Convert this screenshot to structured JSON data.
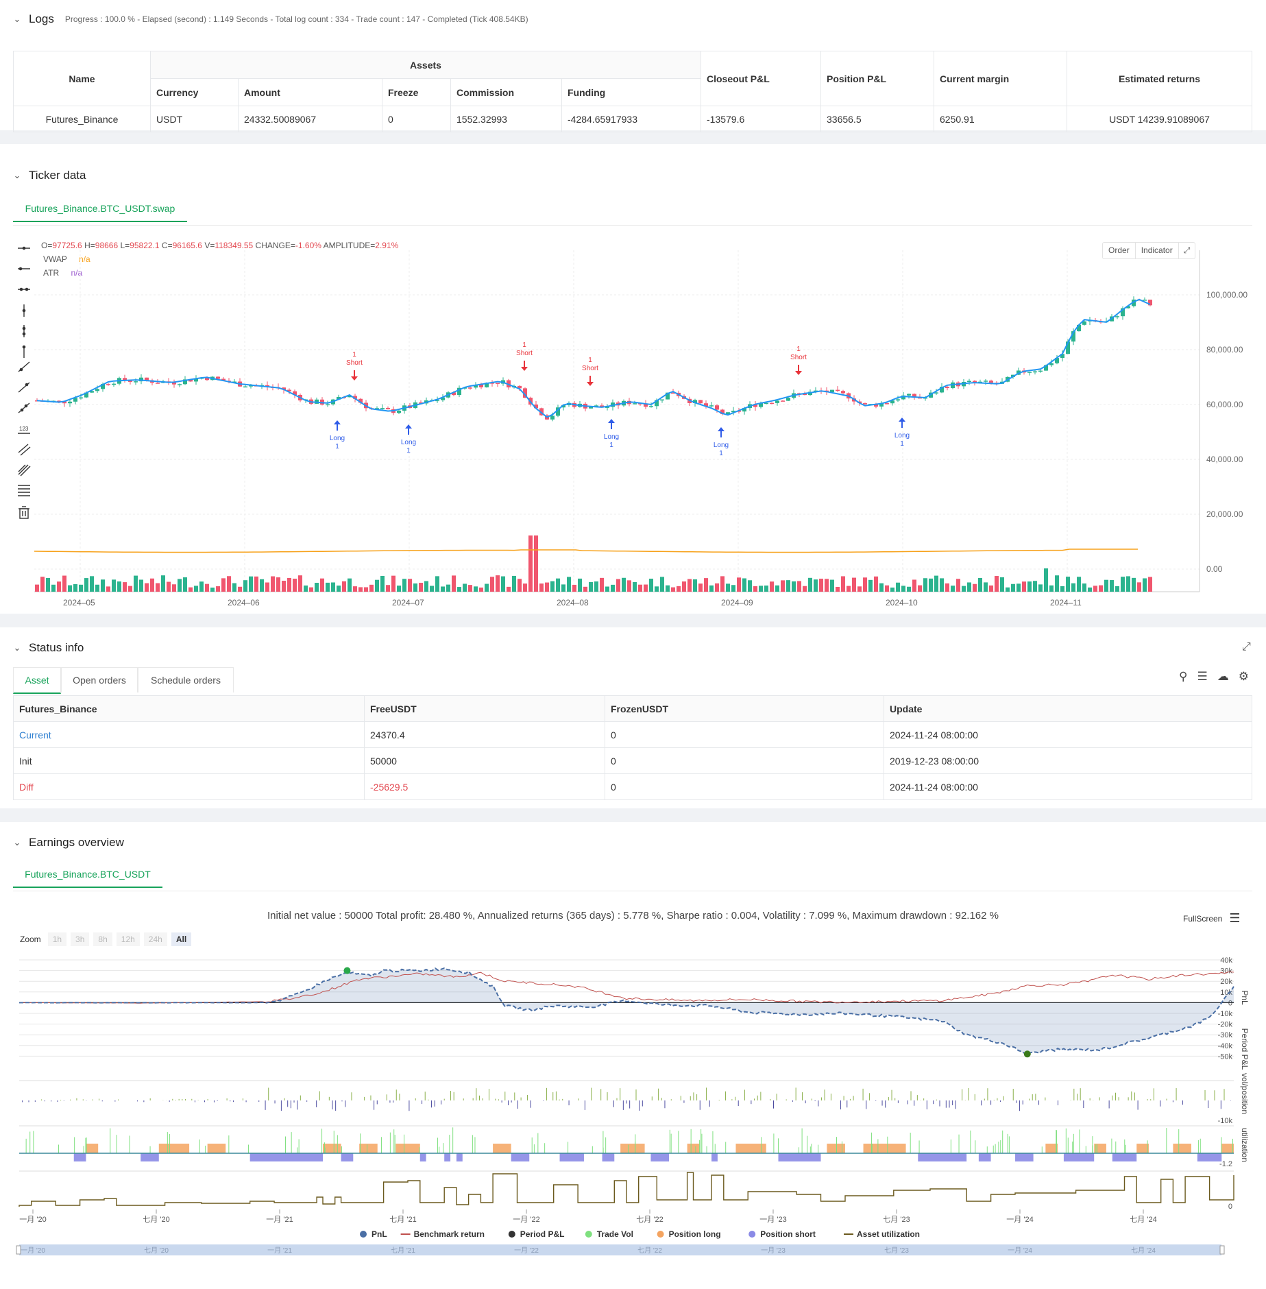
{
  "logs": {
    "title": "Logs",
    "progress": "Progress : 100.0 % - Elapsed (second) : 1.149  Seconds - Total log count : 334 - Trade count : 147 - Completed (Tick 408.54KB)",
    "headers": {
      "name": "Name",
      "assets": "Assets",
      "currency": "Currency",
      "amount": "Amount",
      "freeze": "Freeze",
      "commission": "Commission",
      "funding": "Funding",
      "closeout": "Closeout P&L",
      "position": "Position P&L",
      "margin": "Current margin",
      "returns": "Estimated returns"
    },
    "row": {
      "name": "Futures_Binance",
      "currency": "USDT",
      "amount": "24332.50089067",
      "freeze": "0",
      "commission": "1552.32993",
      "funding": "-4284.65917933",
      "closeout": "-13579.6",
      "position": "33656.5",
      "margin": "6250.91",
      "returns": "USDT 14239.91089067"
    }
  },
  "ticker": {
    "title": "Ticker data",
    "tab": "Futures_Binance.BTC_USDT.swap",
    "ohlc": {
      "o_label": "O=",
      "o": "97725.6",
      "h_label": "H=",
      "h": "98666",
      "l_label": "L=",
      "l": "95822.1",
      "c_label": "C=",
      "c": "96165.6",
      "v_label": "V=",
      "v": "118349.55",
      "change_label": "CHANGE=",
      "change": "-1.60%",
      "amp_label": "AMPLITUDE=",
      "amp": "2.91%"
    },
    "vwap_label": "VWAP",
    "vwap_value": "n/a",
    "atr_label": "ATR",
    "atr_value": "n/a",
    "buttons": {
      "order": "Order",
      "indicator": "Indicator"
    },
    "y_ticks": [
      "100,000.00",
      "80,000.00",
      "60,000.00",
      "40,000.00",
      "20,000.00",
      "0.00"
    ],
    "x_ticks": [
      "2024–05",
      "2024–06",
      "2024–07",
      "2024–08",
      "2024–09",
      "2024–10",
      "2024–11"
    ],
    "signals": {
      "long": "Long",
      "short": "Short",
      "qty": "1"
    },
    "colors": {
      "up": "#2bb38e",
      "down": "#f0566e",
      "vwap": "#2196f3",
      "atr": "#f7a21b",
      "long": "#2f5ce8",
      "short": "#e8333a"
    }
  },
  "status": {
    "title": "Status info",
    "tabs": [
      "Asset",
      "Open orders",
      "Schedule orders"
    ],
    "headers": [
      "Futures_Binance",
      "FreeUSDT",
      "FrozenUSDT",
      "Update"
    ],
    "rows": [
      {
        "label": "Current",
        "free": "24370.4",
        "frozen": "0",
        "update": "2024-11-24 08:00:00"
      },
      {
        "label": "Init",
        "free": "50000",
        "frozen": "0",
        "update": "2019-12-23 08:00:00"
      },
      {
        "label": "Diff",
        "free": "-25629.5",
        "frozen": "0",
        "update": "2024-11-24 08:00:00"
      }
    ]
  },
  "earnings": {
    "title": "Earnings overview",
    "tab": "Futures_Binance.BTC_USDT",
    "summary": "Initial net value : 50000 Total profit: 28.480 %, Annualized returns (365 days) : 5.778 %, Sharpe ratio : 0.004, Volatility : 7.099 %, Maximum drawdown : 92.162 %",
    "fullscreen": "FullScreen",
    "zoom_label": "Zoom",
    "zoom_options": [
      "1h",
      "3h",
      "8h",
      "12h",
      "24h",
      "All"
    ],
    "pnl_ticks": [
      "40k",
      "30k",
      "20k",
      "10k",
      "0",
      "-10k",
      "-20k",
      "-30k",
      "-40k",
      "-50k"
    ],
    "period_tick": "-10k",
    "vol_tick": "-1.2",
    "util_tick": "0",
    "axis_titles": {
      "pnl": "PnL",
      "period": "Period P&L",
      "vol": "vol/position",
      "util": "utilization"
    },
    "x_ticks": [
      "一月 '20",
      "七月 '20",
      "一月 '21",
      "七月 '21",
      "一月 '22",
      "七月 '22",
      "一月 '23",
      "七月 '23",
      "一月 '24",
      "七月 '24"
    ],
    "legend": [
      {
        "label": "PnL",
        "color": "#4a6fa5",
        "shape": "dot"
      },
      {
        "label": "Benchmark return",
        "color": "#c0504d",
        "shape": "line"
      },
      {
        "label": "Period P&L",
        "color": "#333333",
        "shape": "dot"
      },
      {
        "label": "Trade Vol",
        "color": "#7fe07f",
        "shape": "dot"
      },
      {
        "label": "Position long",
        "color": "#f4a460",
        "shape": "dot"
      },
      {
        "label": "Position short",
        "color": "#8a8ae6",
        "shape": "dot"
      },
      {
        "label": "Asset utilization",
        "color": "#6b5a1e",
        "shape": "line"
      }
    ]
  }
}
